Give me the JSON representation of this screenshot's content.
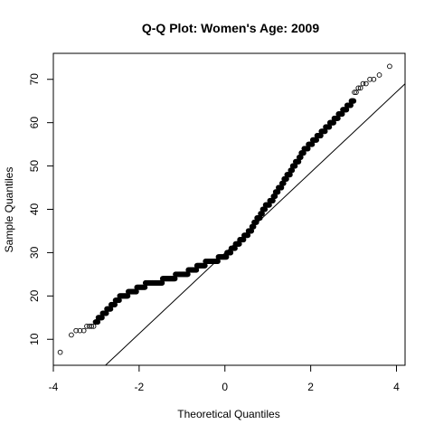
{
  "chart_data": {
    "type": "scatter",
    "title": "Q-Q Plot: Women's Age:  2009",
    "xlabel": "Theoretical Quantiles",
    "ylabel": "Sample Quantiles",
    "xlim": [
      -4.0,
      4.2
    ],
    "ylim": [
      4.0,
      76.0
    ],
    "x_ticks": [
      -4,
      -2,
      0,
      2,
      4
    ],
    "y_ticks": [
      10,
      20,
      30,
      40,
      50,
      60,
      70
    ],
    "x_tick_labels": [
      "-4",
      "-2",
      "0",
      "2",
      "4"
    ],
    "y_tick_labels": [
      "10",
      "20",
      "30",
      "40",
      "50",
      "60",
      "70"
    ],
    "grid": false,
    "legend": "none",
    "reference_line": {
      "intercept": 29.9,
      "slope": 9.3
    },
    "tail_points": {
      "x": [
        -3.84,
        -3.58,
        -3.47,
        -3.38,
        -3.29,
        -3.22,
        -3.16,
        -3.11,
        -3.06,
        -3.02,
        3.02,
        3.06,
        3.11,
        3.16,
        3.22,
        3.29,
        3.38,
        3.47,
        3.6,
        3.84
      ],
      "y": [
        7,
        11,
        12,
        12,
        12,
        13,
        13,
        13,
        13,
        14,
        67,
        67,
        68,
        68,
        69,
        69,
        70,
        70,
        71,
        73
      ]
    },
    "body_points": {
      "x": [
        -3.0,
        -2.9,
        -2.8,
        -2.7,
        -2.6,
        -2.5,
        -2.4,
        -2.3,
        -2.2,
        -2.1,
        -2.0,
        -1.9,
        -1.8,
        -1.7,
        -1.6,
        -1.5,
        -1.4,
        -1.3,
        -1.2,
        -1.1,
        -1.0,
        -0.9,
        -0.8,
        -0.7,
        -0.6,
        -0.5,
        -0.4,
        -0.3,
        -0.2,
        -0.1,
        0.0,
        0.1,
        0.2,
        0.3,
        0.4,
        0.5,
        0.6,
        0.7,
        0.8,
        0.9,
        1.0,
        1.1,
        1.2,
        1.3,
        1.4,
        1.5,
        1.6,
        1.7,
        1.8,
        1.9,
        2.0,
        2.1,
        2.2,
        2.3,
        2.4,
        2.5,
        2.6,
        2.7,
        2.8,
        2.9,
        3.0
      ],
      "y": [
        14,
        15,
        16,
        17,
        18,
        19,
        20,
        20,
        21,
        21,
        22,
        22,
        23,
        23,
        23,
        23,
        24,
        24,
        24,
        25,
        25,
        25,
        26,
        26,
        27,
        27,
        28,
        28,
        28,
        29,
        29,
        30,
        31,
        32,
        33,
        34,
        35,
        37,
        38,
        40,
        41,
        42,
        44,
        45,
        47,
        48,
        50,
        51,
        53,
        54,
        55,
        56,
        57,
        58,
        59,
        60,
        61,
        62,
        63,
        64,
        65
      ]
    }
  }
}
